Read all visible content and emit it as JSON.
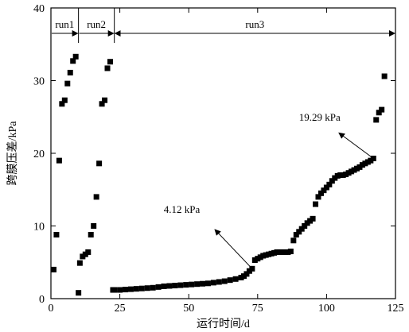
{
  "chart_data": {
    "type": "scatter",
    "xlabel": "运行时间/d",
    "ylabel": "跨膜压差/kPa",
    "xlim": [
      0,
      125
    ],
    "ylim": [
      0,
      40
    ],
    "xticks": [
      0,
      25,
      50,
      75,
      100,
      125
    ],
    "yticks": [
      0,
      10,
      20,
      30,
      40
    ],
    "grid": false,
    "legend": "none",
    "marker": "square",
    "color": "#000000",
    "series": [
      {
        "x": [
          1,
          2,
          3,
          4,
          5,
          6,
          7,
          8,
          9,
          10,
          10.5,
          11.5,
          12.5,
          13.5,
          14.5,
          15.5,
          16.5,
          17.5,
          18.5,
          19.5,
          20.5,
          21.5,
          22.5,
          23,
          25,
          27,
          29,
          31,
          33,
          35,
          37,
          39,
          41,
          43,
          45,
          47,
          49,
          51,
          53,
          55,
          57,
          59,
          61,
          63,
          65,
          67,
          69,
          70,
          71,
          72,
          73,
          74,
          75,
          76,
          77,
          78,
          79,
          80,
          81,
          82,
          83,
          84,
          85,
          86,
          87,
          88,
          89,
          90,
          91,
          92,
          93,
          94,
          95,
          96,
          97,
          98,
          99,
          100,
          101,
          102,
          103,
          104,
          105,
          106,
          107,
          108,
          109,
          110,
          111,
          112,
          113,
          114,
          115,
          116,
          117,
          118,
          119,
          120,
          121
        ],
        "y": [
          4.0,
          8.8,
          19.0,
          26.8,
          27.3,
          29.6,
          31.1,
          32.7,
          33.3,
          0.8,
          4.9,
          5.8,
          6.1,
          6.4,
          8.8,
          10.0,
          14.0,
          18.6,
          26.8,
          27.3,
          31.7,
          32.6,
          1.2,
          1.2,
          1.2,
          1.25,
          1.3,
          1.35,
          1.4,
          1.45,
          1.5,
          1.6,
          1.7,
          1.75,
          1.8,
          1.85,
          1.9,
          1.95,
          2.0,
          2.05,
          2.1,
          2.2,
          2.3,
          2.4,
          2.55,
          2.7,
          2.9,
          3.1,
          3.4,
          3.8,
          4.12,
          5.3,
          5.5,
          5.7,
          5.9,
          6.0,
          6.1,
          6.2,
          6.3,
          6.4,
          6.4,
          6.4,
          6.4,
          6.4,
          6.5,
          8.0,
          8.8,
          9.2,
          9.6,
          10.0,
          10.4,
          10.7,
          11.0,
          13.0,
          14.0,
          14.5,
          14.9,
          15.3,
          15.7,
          16.2,
          16.6,
          16.9,
          17.0,
          17.0,
          17.1,
          17.3,
          17.5,
          17.7,
          17.9,
          18.1,
          18.4,
          18.6,
          18.8,
          19.0,
          19.29,
          24.6,
          25.6,
          26.0,
          30.6
        ]
      }
    ],
    "annotations": [
      {
        "text": "4.12 kPa",
        "point": [
          73,
          4.12
        ],
        "text_at": [
          47.5,
          11.8
        ],
        "arrow_to": [
          59.5,
          9.5
        ]
      },
      {
        "text": "19.29 kPa",
        "point": [
          117,
          19.29
        ],
        "text_at": [
          97.5,
          24.5
        ],
        "arrow_to": [
          104.5,
          22.8
        ]
      }
    ],
    "runs": [
      {
        "label": "run1",
        "from": 0,
        "to": 10,
        "arrow_left": false,
        "arrow_right": true
      },
      {
        "label": "run2",
        "from": 10,
        "to": 23,
        "arrow_left": false,
        "arrow_right": true
      },
      {
        "label": "run3",
        "from": 23,
        "to": 125,
        "arrow_left": true,
        "arrow_right": true
      }
    ],
    "run_line_y": 36.5
  }
}
